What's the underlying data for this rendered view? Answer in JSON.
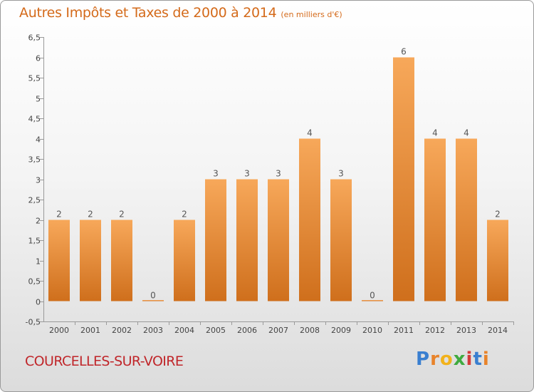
{
  "title": "Autres Impôts et Taxes de 2000 à 2014",
  "unit_note": "(en milliers d'€)",
  "commune": "COURCELLES-SUR-VOIRE",
  "logo": {
    "text": "Proxiti",
    "colors": [
      "#3a7fd0",
      "#e8832a",
      "#f2b21b",
      "#3faa3f",
      "#d43a3a",
      "#3a7fd0",
      "#e8832a"
    ]
  },
  "colors": {
    "bar_light": "#f7a85a",
    "bar_dark": "#cf6f1c",
    "title": "#d46a1a",
    "commune": "#c0262a"
  },
  "chart_data": {
    "type": "bar",
    "categories": [
      "2000",
      "2001",
      "2002",
      "2003",
      "2004",
      "2005",
      "2006",
      "2007",
      "2008",
      "2009",
      "2010",
      "2011",
      "2012",
      "2013",
      "2014"
    ],
    "values": [
      2,
      2,
      2,
      0,
      2,
      3,
      3,
      3,
      4,
      3,
      0,
      6,
      4,
      4,
      2
    ],
    "title": "Autres Impôts et Taxes de 2000 à 2014",
    "xlabel": "",
    "ylabel": "",
    "ylim": [
      -0.5,
      6.5
    ],
    "yticks": [
      "-0,5",
      "0",
      "0,5",
      "1",
      "1,5",
      "2",
      "2,5",
      "3",
      "3,5",
      "4",
      "4,5",
      "5",
      "5,5",
      "6",
      "6,5"
    ],
    "ytick_values": [
      -0.5,
      0,
      0.5,
      1,
      1.5,
      2,
      2.5,
      3,
      3.5,
      4,
      4.5,
      5,
      5.5,
      6,
      6.5
    ],
    "grid": false,
    "legend": "none"
  }
}
